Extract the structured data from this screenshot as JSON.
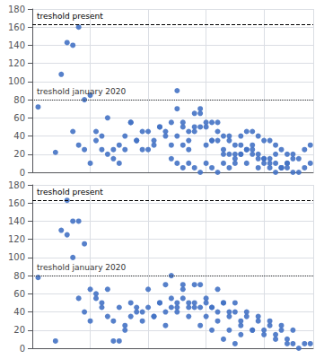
{
  "chart_data": [
    {
      "type": "scatter",
      "color": "#4472c4",
      "grid": true,
      "tick_labels": "y",
      "xlim": [
        0,
        97
      ],
      "xticks": [
        0,
        20,
        40,
        60,
        80
      ],
      "ylim": [
        0,
        180
      ],
      "yticks": [
        0,
        20,
        40,
        60,
        80,
        100,
        120,
        140,
        160,
        180
      ],
      "hlines": [
        {
          "y": 163,
          "label": "treshold present",
          "line_style": "dashed",
          "color": "#000000"
        },
        {
          "y": 80,
          "label": "treshold january 2020",
          "line_style": "dotted",
          "color": "#333333"
        }
      ],
      "x": [
        2,
        8,
        10,
        12,
        14,
        16,
        18,
        20,
        22,
        24,
        26,
        28,
        30,
        32,
        34,
        36,
        38,
        40,
        42,
        44,
        46,
        48,
        50,
        50,
        52,
        52,
        54,
        54,
        56,
        56,
        58,
        58,
        60,
        60,
        62,
        62,
        64,
        64,
        66,
        66,
        68,
        68,
        70,
        70,
        72,
        72,
        74,
        74,
        76,
        76,
        78,
        78,
        80,
        80,
        82,
        82,
        84,
        84,
        86,
        86,
        88,
        88,
        90,
        90,
        92,
        92,
        94,
        94,
        96,
        96,
        48,
        50,
        52,
        54,
        56,
        58,
        60,
        62,
        64,
        66,
        68,
        70,
        72,
        74,
        76,
        78,
        80,
        82,
        84,
        86,
        88,
        90,
        14,
        16,
        18,
        20,
        22,
        24,
        26,
        28,
        30,
        32,
        34,
        36,
        38,
        40,
        42,
        44,
        46,
        48,
        50,
        52,
        54,
        56,
        58,
        60,
        62,
        64,
        66,
        68,
        70,
        72,
        74,
        76,
        78,
        80,
        82,
        84,
        86,
        88
      ],
      "values": [
        72,
        22,
        108,
        143,
        45,
        30,
        25,
        10,
        35,
        25,
        60,
        15,
        10,
        25,
        55,
        35,
        25,
        45,
        30,
        50,
        45,
        30,
        90,
        70,
        50,
        30,
        45,
        25,
        65,
        45,
        70,
        50,
        50,
        30,
        55,
        35,
        55,
        35,
        40,
        20,
        40,
        20,
        30,
        10,
        40,
        20,
        45,
        25,
        45,
        25,
        40,
        20,
        35,
        15,
        35,
        15,
        30,
        10,
        25,
        5,
        20,
        5,
        20,
        0,
        15,
        0,
        25,
        5,
        30,
        10,
        15,
        10,
        5,
        10,
        5,
        0,
        10,
        5,
        0,
        10,
        5,
        15,
        20,
        25,
        30,
        15,
        10,
        5,
        0,
        5,
        10,
        15,
        140,
        160,
        80,
        85,
        45,
        40,
        20,
        25,
        30,
        40,
        55,
        35,
        45,
        25,
        35,
        50,
        40,
        55,
        40,
        55,
        35,
        50,
        65,
        55,
        35,
        45,
        25,
        35,
        20,
        30,
        10,
        20,
        5,
        15,
        10,
        20,
        5,
        10
      ]
    },
    {
      "type": "scatter",
      "color": "#4472c4",
      "grid": true,
      "tick_labels": "y",
      "xlim": [
        0,
        97
      ],
      "xticks": [
        0,
        20,
        40,
        60,
        80
      ],
      "ylim": [
        0,
        180
      ],
      "yticks": [
        0,
        20,
        40,
        60,
        80,
        100,
        120,
        140,
        160,
        180
      ],
      "hlines": [
        {
          "y": 163,
          "label": "treshold present",
          "line_style": "dashed",
          "color": "#000000"
        },
        {
          "y": 80,
          "label": "treshold january 2020",
          "line_style": "dotted",
          "color": "#333333"
        }
      ],
      "x": [
        2,
        8,
        10,
        12,
        14,
        16,
        18,
        20,
        22,
        24,
        26,
        28,
        30,
        32,
        34,
        36,
        38,
        40,
        42,
        44,
        46,
        48,
        50,
        52,
        54,
        56,
        58,
        60,
        62,
        64,
        66,
        68,
        70,
        72,
        74,
        76,
        78,
        80,
        82,
        84,
        86,
        88,
        90,
        92,
        94,
        96,
        46,
        48,
        50,
        52,
        54,
        56,
        58,
        60,
        62,
        64,
        66,
        68,
        70,
        72,
        74,
        76,
        78,
        80,
        82,
        84,
        86,
        88,
        90,
        12,
        14,
        16,
        18,
        20,
        22,
        24,
        26,
        28,
        30,
        32,
        34,
        36,
        38,
        40,
        42,
        44,
        46,
        48,
        50,
        52,
        54,
        56,
        58,
        60,
        62,
        64,
        66,
        68,
        70,
        72
      ],
      "values": [
        78,
        8,
        130,
        163,
        100,
        55,
        40,
        30,
        60,
        50,
        65,
        8,
        8,
        20,
        50,
        40,
        40,
        65,
        35,
        50,
        70,
        80,
        45,
        65,
        45,
        70,
        45,
        50,
        45,
        40,
        50,
        35,
        40,
        25,
        35,
        20,
        30,
        15,
        25,
        10,
        20,
        5,
        5,
        0,
        5,
        5,
        25,
        45,
        50,
        70,
        50,
        50,
        70,
        55,
        45,
        65,
        50,
        40,
        50,
        30,
        40,
        20,
        35,
        20,
        30,
        15,
        25,
        10,
        20,
        125,
        140,
        140,
        115,
        65,
        55,
        45,
        35,
        30,
        45,
        25,
        35,
        45,
        30,
        45,
        35,
        50,
        40,
        55,
        40,
        55,
        35,
        45,
        25,
        35,
        20,
        30,
        10,
        20,
        5,
        15
      ]
    }
  ]
}
